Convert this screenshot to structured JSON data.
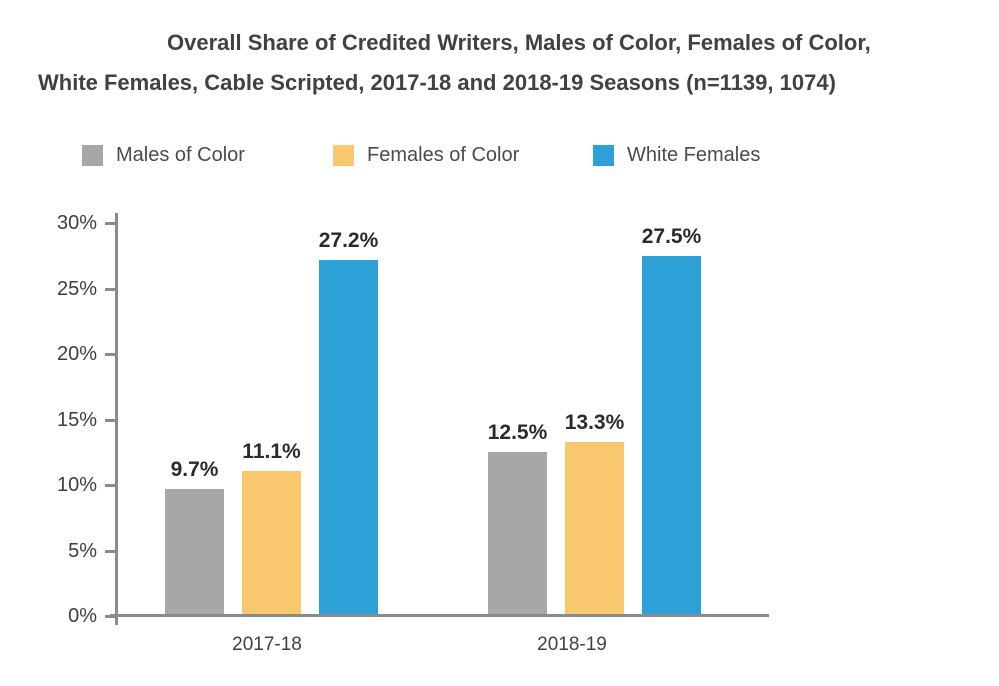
{
  "title": {
    "line1": "Overall Share of Credited Writers, Males of Color, Females of Color,",
    "line2": "White Females, Cable Scripted, 2017-18 and 2018-19 Seasons (n=1139, 1074)"
  },
  "legend": {
    "items": [
      {
        "label": "Males of Color",
        "color": "#a7a7a9"
      },
      {
        "label": "Females of Color",
        "color": "#f9c76d"
      },
      {
        "label": "White Females",
        "color": "#2da0d8"
      }
    ]
  },
  "chart_data": {
    "type": "bar",
    "categories": [
      "2017-18",
      "2018-19"
    ],
    "series": [
      {
        "name": "Males of Color",
        "color": "#a7a7a9",
        "values": [
          9.7,
          12.5
        ]
      },
      {
        "name": "Females of Color",
        "color": "#f9c76d",
        "values": [
          11.1,
          13.3
        ]
      },
      {
        "name": "White Females",
        "color": "#2da0d8",
        "values": [
          27.2,
          27.5
        ]
      }
    ],
    "title": "Overall Share of Credited Writers, Males of Color, Females of Color, White Females, Cable Scripted, 2017-18 and 2018-19 Seasons (n=1139, 1074)",
    "xlabel": "",
    "ylabel": "",
    "ylim": [
      0,
      30
    ],
    "ytick_interval": 5,
    "ytick_labels": [
      "0%",
      "5%",
      "10%",
      "15%",
      "20%",
      "25%",
      "30%"
    ],
    "value_suffix": "%",
    "value_labels_shown": true,
    "grid": false,
    "legend_position": "top-left"
  },
  "colors": {
    "title_text": "#414042",
    "axis": "#898b8d",
    "tick_label_text": "#3e3e40",
    "value_label_text": "#2b2a2e",
    "legend_label_text": "#4b4b4d",
    "background": "#ffffff"
  }
}
